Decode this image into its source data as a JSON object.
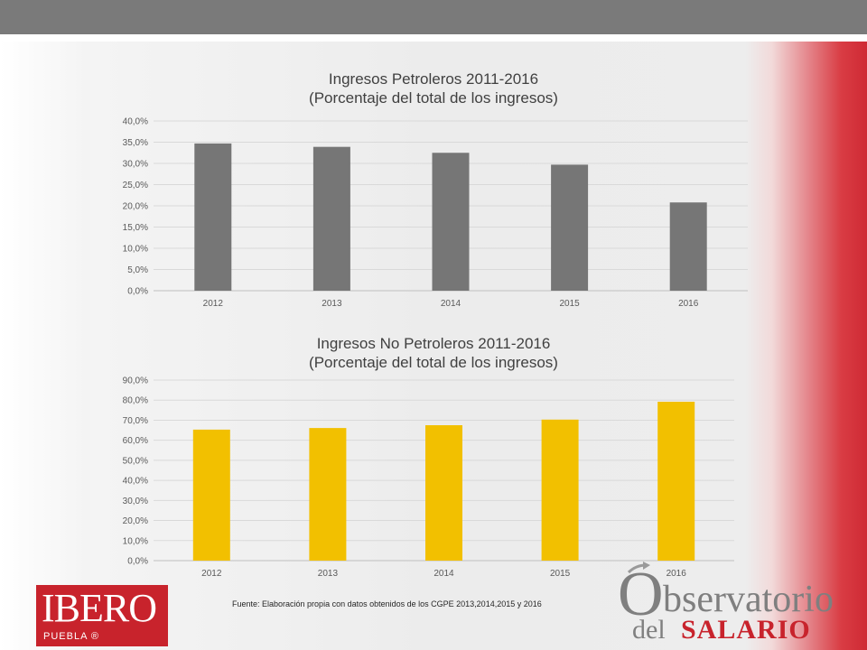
{
  "chart_data": [
    {
      "type": "bar",
      "title_line1": "Ingresos Petroleros 2011-2016",
      "title_line2": "(Porcentaje del total de los ingresos)",
      "categories": [
        "2012",
        "2013",
        "2014",
        "2015",
        "2016"
      ],
      "values": [
        34.7,
        33.9,
        32.5,
        29.7,
        20.8
      ],
      "ylim": [
        0,
        40
      ],
      "yticks": [
        0,
        5,
        10,
        15,
        20,
        25,
        30,
        35,
        40
      ],
      "ytick_labels": [
        "0,0%",
        "5,0%",
        "10,0%",
        "15,0%",
        "20,0%",
        "25,0%",
        "30,0%",
        "35,0%",
        "40,0%"
      ],
      "bar_color": "#767676",
      "grid": true
    },
    {
      "type": "bar",
      "title_line1": "Ingresos No Petroleros 2011-2016",
      "title_line2": "(Porcentaje del total de los ingresos)",
      "categories": [
        "2012",
        "2013",
        "2014",
        "2015",
        "2016"
      ],
      "values": [
        65.3,
        66.1,
        67.5,
        70.3,
        79.2
      ],
      "ylim": [
        0,
        90
      ],
      "yticks": [
        0,
        10,
        20,
        30,
        40,
        50,
        60,
        70,
        80,
        90
      ],
      "ytick_labels": [
        "0,0%",
        "10,0%",
        "20,0%",
        "30,0%",
        "40,0%",
        "50,0%",
        "60,0%",
        "70,0%",
        "80,0%",
        "90,0%"
      ],
      "bar_color": "#f2c000",
      "grid": true
    }
  ],
  "footer": {
    "source": "Fuente: Elaboración propia con datos obtenidos de los CGPE 2013,2014,2015 y 2016"
  },
  "logos": {
    "ibero_word": "IBERO",
    "ibero_sub": "PUEBLA ®",
    "obs_o": "O",
    "obs_rest": "bservatorio",
    "obs_del": "del",
    "obs_salario": "SALARIO"
  },
  "colors": {
    "top_bar": "#7a7a7a",
    "accent_red": "#c8232c"
  }
}
